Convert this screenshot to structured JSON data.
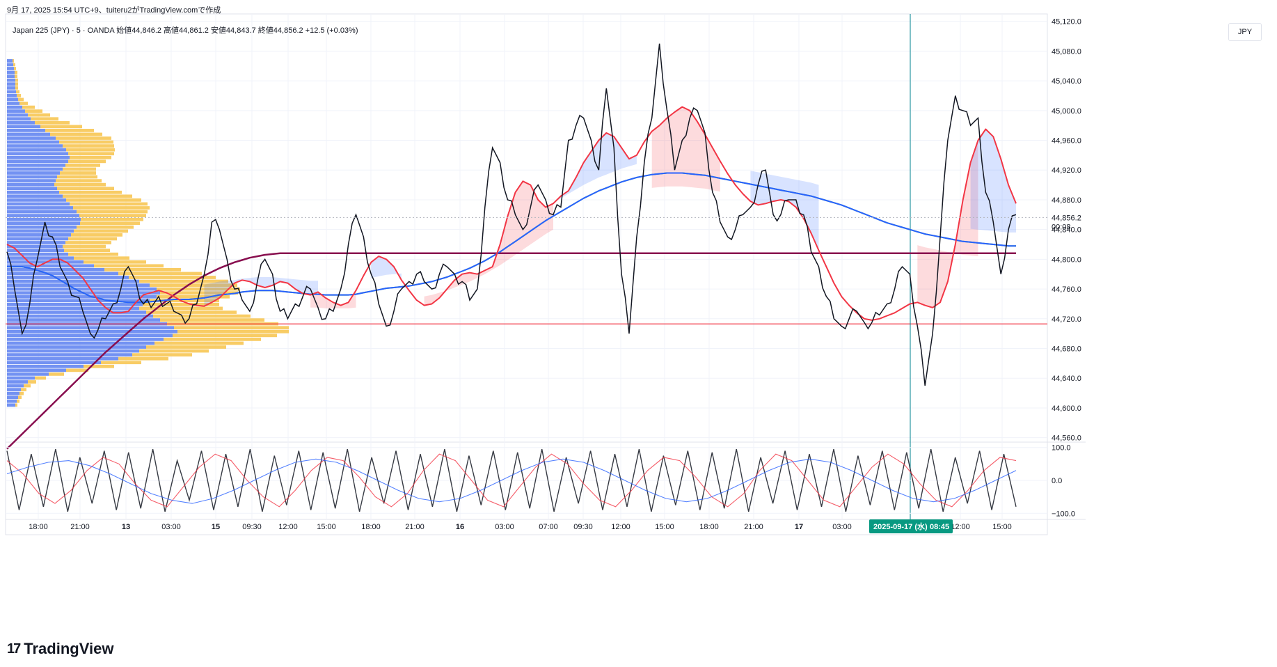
{
  "caption": "9月 17, 2025 15:54 UTC+9、tuiteru2がTradingView.comで作成",
  "legend": "Japan 225 (JPY) · 5 · OANDA  始値44,846.2  高値44,861.2  安値44,843.7  終値44,856.2  +12.5 (+0.03%)",
  "currency": "JPY",
  "logo": "TradingView",
  "colors": {
    "price": "#131722",
    "fast_ma": "#f23645",
    "mid_ma": "#2962ff",
    "slow_ma": "#4caf50",
    "long_ma": "#880e4f",
    "hline": "#f23645",
    "vline": "#00838f",
    "vp_blue": "#5b7ff0",
    "vp_yellow": "#f7c34a"
  },
  "chart_data": [
    {
      "type": "line",
      "title": "Japan 225 (JPY) · 5 · OANDA",
      "x_ticks": [
        "18:00",
        "21:00",
        "13",
        "03:00",
        "15",
        "09:30",
        "12:00",
        "15:00",
        "18:00",
        "21:00",
        "16",
        "03:00",
        "07:00",
        "09:30",
        "12:00",
        "15:00",
        "18:00",
        "21:00",
        "17",
        "03:00",
        "08:45",
        "12:00",
        "15:00"
      ],
      "crosshair_date_label": "2025-09-17 (水)",
      "crosshair_time_label": "08:45",
      "y_ticks": [
        "45,120.0",
        "45,080.0",
        "45,040.0",
        "45,000.0",
        "44,960.0",
        "44,920.0",
        "44,880.0",
        "44,840.0",
        "44,800.0",
        "44,760.0",
        "44,720.0",
        "44,680.0",
        "44,640.0",
        "44,600.0",
        "44,560.0"
      ],
      "ylim": [
        44555,
        45130
      ],
      "last_price_label": "44,856.2",
      "last_price": 44856.2,
      "countdown_label": "00:08",
      "horizontal_line": 44713,
      "series": [
        {
          "values": [
            44810,
            44760,
            44700,
            44740,
            44800,
            44850,
            44830,
            44790,
            44770,
            44750,
            44730,
            44700,
            44705,
            44720,
            44740,
            44760,
            44790,
            44770,
            44740,
            44735,
            44750,
            44740,
            44730,
            44725,
            44720,
            44740,
            44780,
            44850,
            44840,
            44800,
            44760,
            44745,
            44730,
            44770,
            44800,
            44780,
            44730,
            44720,
            44740,
            44750,
            44760,
            44735,
            44720,
            44730,
            44760,
            44820,
            44860,
            44830,
            44780,
            44740,
            44710,
            44730,
            44760,
            44770,
            44780,
            44770,
            44760,
            44780,
            44790,
            44780,
            44770,
            44745,
            44760,
            44870,
            44950,
            44930,
            44880,
            44860,
            44840,
            44870,
            44900,
            44880,
            44860,
            44870,
            44960,
            44980,
            44990,
            44960,
            44920,
            45030,
            44950,
            44780,
            44700,
            44830,
            44930,
            44990,
            45090,
            45000,
            44920,
            44960,
            44990,
            45000,
            44970,
            44890,
            44850,
            44830,
            44840,
            44860,
            44870,
            44900,
            44920,
            44860,
            44860,
            44880,
            44880,
            44860,
            44810,
            44790,
            44750,
            44720,
            44710,
            44720,
            44730,
            44715,
            44715,
            44725,
            44740,
            44760,
            44790,
            44780,
            44710,
            44630,
            44700,
            44830,
            44960,
            45020,
            45000,
            44980,
            44990,
            44890,
            44850,
            44780,
            44840,
            44860
          ]
        },
        {
          "values": [
            44820,
            44815,
            44805,
            44795,
            44790,
            44795,
            44800,
            44800,
            44795,
            44785,
            44775,
            44760,
            44745,
            44735,
            44728,
            44728,
            44730,
            44742,
            44752,
            44755,
            44758,
            44755,
            44750,
            44744,
            44740,
            44738,
            44737,
            44742,
            44748,
            44758,
            44768,
            44772,
            44770,
            44765,
            44762,
            44765,
            44770,
            44768,
            44760,
            44754,
            44752,
            44756,
            44748,
            44742,
            44738,
            44742,
            44758,
            44778,
            44796,
            44804,
            44800,
            44790,
            44772,
            44758,
            44745,
            44738,
            44740,
            44748,
            44760,
            44772,
            44780,
            44782,
            44780,
            44785,
            44790,
            44820,
            44858,
            44890,
            44905,
            44900,
            44880,
            44870,
            44875,
            44885,
            44892,
            44910,
            44930,
            44945,
            44960,
            44970,
            44965,
            44950,
            44935,
            44940,
            44958,
            44972,
            44980,
            44990,
            44998,
            45005,
            45000,
            44985,
            44968,
            44950,
            44932,
            44915,
            44900,
            44888,
            44878,
            44873,
            44875,
            44878,
            44880,
            44878,
            44870,
            44855,
            44835,
            44812,
            44790,
            44768,
            44750,
            44738,
            44728,
            44720,
            44718,
            44720,
            44724,
            44728,
            44734,
            44740,
            44742,
            44738,
            44735,
            44742,
            44770,
            44820,
            44880,
            44930,
            44960,
            44975,
            44965,
            44935,
            44900,
            44875
          ]
        },
        {
          "values": [
            44790,
            44790,
            44790,
            44788,
            44785,
            44782,
            44778,
            44772,
            44766,
            44760,
            44755,
            44750,
            44748,
            44745,
            44744,
            44743,
            44742,
            44742,
            44742,
            44743,
            44744,
            44745,
            44746,
            44746,
            44746,
            44747,
            44748,
            44750,
            44752,
            44753,
            44754,
            44756,
            44757,
            44758,
            44758,
            44758,
            44757,
            44756,
            44755,
            44754,
            44753,
            44753,
            44752,
            44752,
            44752,
            44752,
            44753,
            44755,
            44757,
            44759,
            44761,
            44762,
            44763,
            44764,
            44766,
            44768,
            44770,
            44773,
            44776,
            44780,
            44784,
            44788,
            44793,
            44798,
            44804,
            44810,
            44817,
            44824,
            44831,
            44838,
            44845,
            44852,
            44858,
            44864,
            44870,
            44876,
            44882,
            44887,
            44892,
            44896,
            44900,
            44904,
            44907,
            44910,
            44912,
            44914,
            44915,
            44916,
            44916,
            44916,
            44915,
            44914,
            44913,
            44911,
            44909,
            44907,
            44905,
            44903,
            44901,
            44899,
            44897,
            44895,
            44893,
            44891,
            44889,
            44887,
            44885,
            44882,
            44879,
            44876,
            44873,
            44869,
            44865,
            44861,
            44857,
            44853,
            44849,
            44846,
            44843,
            44840,
            44837,
            44834,
            44832,
            44830,
            44828,
            44826,
            44824,
            44823,
            44822,
            44821,
            44820,
            44819,
            44818,
            44818
          ]
        },
        {
          "values": [
            44545,
            44555,
            44565,
            44575,
            44585,
            44595,
            44605,
            44615,
            44625,
            44635,
            44645,
            44655,
            44665,
            44675,
            44684,
            44693,
            44702,
            44711,
            44720,
            44728,
            44736,
            44744,
            44752,
            44759,
            44766,
            44772,
            44778,
            44783,
            44788,
            44792,
            44796,
            44799,
            44802,
            44804,
            44806,
            44807,
            44808,
            44808,
            44808,
            44808,
            44808,
            44808,
            44808,
            44808,
            44808,
            44808,
            44808,
            44808,
            44808,
            44808,
            44808,
            44808,
            44808,
            44808,
            44808,
            44808,
            44808,
            44808,
            44808,
            44808,
            44808,
            44808,
            44808,
            44808,
            44808,
            44808,
            44808,
            44808,
            44808,
            44808,
            44808,
            44808,
            44808,
            44808,
            44808,
            44808,
            44808,
            44808,
            44808,
            44808,
            44808,
            44808,
            44808,
            44808,
            44808,
            44808,
            44808,
            44808,
            44808,
            44808,
            44808,
            44808,
            44808,
            44808,
            44808,
            44808,
            44808,
            44808,
            44808,
            44808,
            44808,
            44808,
            44808,
            44808,
            44808,
            44808,
            44808,
            44808,
            44808,
            44808,
            44808,
            44808,
            44808,
            44808,
            44808,
            44808,
            44808,
            44808,
            44808,
            44808,
            44808,
            44808,
            44808,
            44808,
            44808,
            44808,
            44808,
            44808,
            44808,
            44808,
            44808,
            44808,
            44808,
            44808
          ]
        }
      ]
    },
    {
      "type": "line",
      "y_ticks": [
        "100.0",
        "0.0",
        "−100.0"
      ],
      "ylim": [
        -110,
        110
      ],
      "series": [
        {
          "values": [
            90,
            -90,
            80,
            -80,
            95,
            -95,
            70,
            -70,
            90,
            -90,
            85,
            -85,
            95,
            -95,
            60,
            -60,
            90,
            -90,
            80,
            -80,
            95,
            -95,
            75,
            -75,
            90,
            -90,
            85,
            -85,
            95,
            -95,
            70,
            -70,
            90,
            -90,
            80,
            -80,
            95,
            -95,
            75,
            -75,
            90,
            -90,
            85,
            -85,
            95,
            -95,
            70,
            -70,
            90,
            -90,
            80,
            -80,
            95,
            -95,
            75,
            -75,
            90,
            -90,
            85,
            -85,
            95,
            -95,
            70,
            -70,
            90,
            -90,
            80,
            -80,
            95,
            -95,
            75,
            -75,
            90,
            -90,
            85,
            -85,
            95,
            -95,
            70,
            -70,
            90,
            -90,
            80,
            -80
          ]
        },
        {
          "values": [
            60,
            20,
            -40,
            -70,
            -30,
            30,
            70,
            50,
            -10,
            -60,
            -80,
            -20,
            40,
            80,
            60,
            0,
            -50,
            -80,
            -30,
            30,
            70,
            60,
            10,
            -50,
            -80,
            -40,
            30,
            80,
            60,
            0,
            -60,
            -80,
            -20,
            40,
            80,
            50,
            -10,
            -60,
            -80,
            -30,
            30,
            70,
            60,
            10,
            -50,
            -80,
            -40,
            30,
            80,
            60,
            0,
            -60,
            -80,
            -20,
            40,
            80,
            50,
            -10,
            -60,
            -80,
            -30,
            30,
            70,
            60
          ]
        },
        {
          "values": [
            20,
            40,
            55,
            60,
            45,
            20,
            -10,
            -40,
            -60,
            -70,
            -55,
            -30,
            0,
            30,
            55,
            65,
            55,
            30,
            0,
            -30,
            -55,
            -65,
            -55,
            -30,
            0,
            30,
            55,
            65,
            55,
            30,
            0,
            -30,
            -55,
            -65,
            -55,
            -30,
            0,
            30,
            55,
            65,
            55,
            30,
            0,
            -30,
            -55,
            -65,
            -55,
            -30,
            0,
            30
          ]
        }
      ]
    }
  ],
  "volume_profile": {
    "blue": [
      8,
      9,
      10,
      11,
      11,
      12,
      12,
      12,
      13,
      14,
      16,
      18,
      22,
      26,
      30,
      34,
      40,
      48,
      55,
      62,
      70,
      75,
      80,
      85,
      88,
      90,
      88,
      84,
      80,
      76,
      72,
      70,
      68,
      72,
      75,
      80,
      85,
      90,
      95,
      100,
      104,
      106,
      105,
      100,
      96,
      92,
      88,
      84,
      80,
      82,
      88,
      96,
      110,
      125,
      140,
      160,
      175,
      190,
      205,
      215,
      220,
      215,
      205,
      195,
      190,
      200,
      210,
      220,
      230,
      240,
      245,
      238,
      225,
      212,
      200,
      190,
      180,
      160,
      135,
      110,
      85,
      60,
      40,
      30,
      24,
      20,
      18,
      16,
      14,
      12
    ],
    "yellow": [
      2,
      3,
      3,
      4,
      4,
      4,
      4,
      4,
      5,
      6,
      8,
      12,
      18,
      25,
      32,
      40,
      50,
      60,
      70,
      75,
      80,
      78,
      74,
      70,
      66,
      60,
      54,
      50,
      48,
      52,
      58,
      66,
      74,
      82,
      90,
      100,
      108,
      112,
      110,
      102,
      96,
      90,
      86,
      82,
      78,
      74,
      70,
      66,
      62,
      66,
      72,
      80,
      90,
      100,
      110,
      120,
      125,
      128,
      126,
      120,
      112,
      105,
      100,
      110,
      120,
      130,
      140,
      150,
      160,
      165,
      160,
      150,
      140,
      128,
      115,
      100,
      86,
      72,
      58,
      44,
      32,
      22,
      16,
      12,
      10,
      8,
      6,
      5,
      4,
      3
    ]
  },
  "indicator": {
    "overlay_ranges": [
      {
        "from": 0.2,
        "to": 0.305,
        "kind": "blue"
      },
      {
        "from": 0.305,
        "to": 0.345,
        "kind": "red"
      },
      {
        "from": 0.365,
        "to": 0.385,
        "kind": "blue"
      },
      {
        "from": 0.42,
        "to": 0.47,
        "kind": "red"
      },
      {
        "from": 0.48,
        "to": 0.54,
        "kind": "red"
      },
      {
        "from": 0.545,
        "to": 0.62,
        "kind": "blue"
      },
      {
        "from": 0.64,
        "to": 0.7,
        "kind": "red"
      },
      {
        "from": 0.74,
        "to": 0.8,
        "kind": "blue"
      },
      {
        "from": 0.905,
        "to": 0.955,
        "kind": "red"
      },
      {
        "from": 0.955,
        "to": 0.995,
        "kind": "blue"
      }
    ]
  }
}
